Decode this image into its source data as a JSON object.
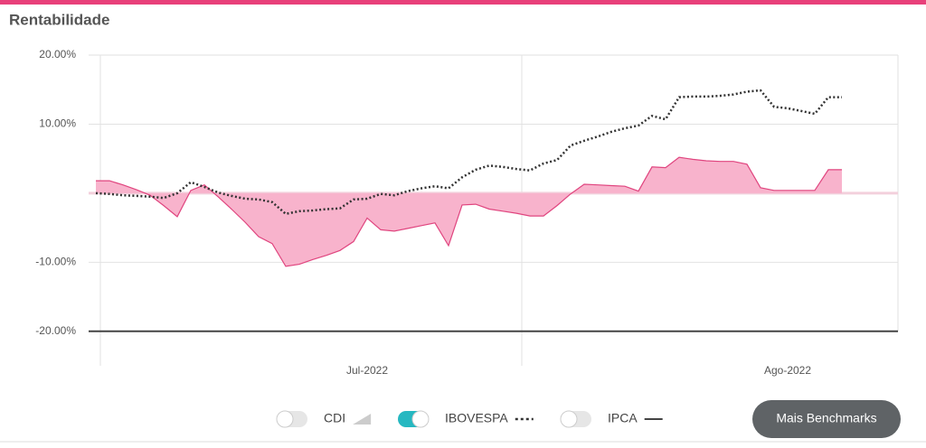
{
  "title": "Rentabilidade",
  "chart_data": {
    "type": "area",
    "categories": [
      null,
      null,
      null,
      null,
      null,
      null,
      null,
      null,
      null,
      null,
      null,
      null,
      null,
      null,
      null,
      null,
      null,
      null,
      null,
      null,
      "Jul-2022",
      null,
      null,
      null,
      null,
      null,
      null,
      null,
      null,
      null,
      null,
      null,
      null,
      null,
      null,
      null,
      null,
      null,
      null,
      null,
      null,
      null,
      null,
      null,
      null,
      null,
      null,
      null,
      null,
      null,
      null,
      "Ago-2022",
      null,
      null,
      null,
      null
    ],
    "series": [
      {
        "color": "#e0457f",
        "fill": "#f8b3cc",
        "style": "area",
        "values": [
          1.8,
          1.8,
          1.2,
          0.5,
          -0.3,
          -1.8,
          -3.4,
          0.4,
          1.2,
          -0.5,
          -2.3,
          -4.2,
          -6.3,
          -7.3,
          -10.6,
          -10.3,
          -9.6,
          -9.0,
          -8.3,
          -7.0,
          -3.6,
          -5.3,
          -5.5,
          -5.1,
          -4.7,
          -4.3,
          -7.6,
          -1.7,
          -1.6,
          -2.3,
          -2.6,
          -2.9,
          -3.3,
          -3.3,
          -1.8,
          -0.1,
          1.3,
          1.2,
          1.1,
          1.0,
          0.3,
          3.8,
          3.7,
          5.2,
          4.9,
          4.7,
          4.6,
          4.6,
          4.2,
          0.8,
          0.4,
          0.4,
          0.4,
          0.4,
          3.4,
          3.4
        ]
      },
      {
        "color": "#333333",
        "style": "dotted",
        "values": [
          0,
          -0.1,
          -0.3,
          -0.4,
          -0.5,
          -0.7,
          0,
          1.6,
          0.9,
          0.1,
          -0.4,
          -0.8,
          -0.9,
          -1.3,
          -3.0,
          -2.6,
          -2.5,
          -2.3,
          -2.2,
          -0.9,
          -0.8,
          -0.1,
          -0.3,
          0.3,
          0.7,
          1.0,
          0.7,
          2.3,
          3.4,
          4.0,
          3.8,
          3.5,
          3.3,
          4.3,
          4.8,
          6.9,
          7.6,
          8.2,
          8.9,
          9.4,
          9.8,
          11.2,
          10.7,
          13.9,
          14.0,
          14.0,
          14.1,
          14.3,
          14.7,
          14.9,
          12.5,
          12.3,
          11.9,
          11.5,
          13.9,
          13.9
        ]
      }
    ],
    "ylim": [
      -25,
      20
    ],
    "yticks": [
      {
        "value": 20,
        "label": "20.00%"
      },
      {
        "value": 10,
        "label": "10.00%"
      },
      0,
      {
        "value": -10,
        "label": "-10.00%"
      },
      {
        "value": -20,
        "label": "-20.00%"
      }
    ],
    "grid": true
  },
  "legend": [
    {
      "name": "CDI",
      "on": false,
      "symbol": "area"
    },
    {
      "name": "IBOVESPA",
      "on": true,
      "symbol": "dotted"
    },
    {
      "name": "IPCA",
      "on": false,
      "symbol": "solid"
    }
  ],
  "button": "Mais Benchmarks"
}
